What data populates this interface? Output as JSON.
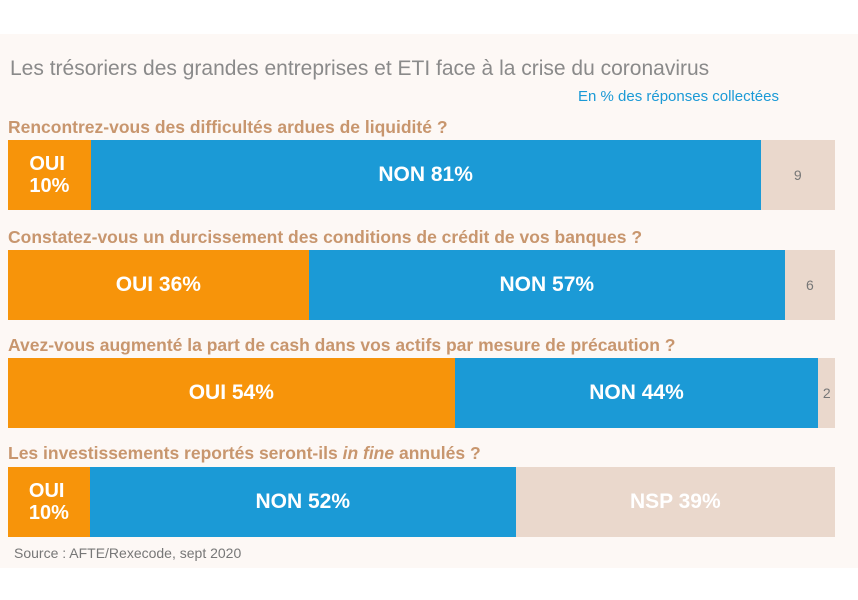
{
  "chart_data": {
    "type": "bar",
    "stacked": true,
    "orientation": "horizontal",
    "title": "Les trésoriers des grandes entreprises et ETI face à la crise du coronavirus",
    "subtitle": "En % des réponses collectées",
    "source": "Source : AFTE/Rexecode, sept 2020",
    "colors": {
      "oui": "#f7940a",
      "non": "#1b9ad6",
      "nsp": "#ead8cc"
    },
    "questions": [
      {
        "text": "Rencontrez-vous des difficultés ardues de liquidité ?",
        "segments": [
          {
            "category": "oui",
            "value": 10,
            "label": "OUI\n10%"
          },
          {
            "category": "non",
            "value": 81,
            "label": "NON 81%"
          },
          {
            "category": "nsp",
            "value": 9,
            "label": "9"
          }
        ]
      },
      {
        "text": "Constatez-vous un durcissement des conditions de crédit de vos banques ?",
        "segments": [
          {
            "category": "oui",
            "value": 36,
            "label": "OUI 36%"
          },
          {
            "category": "non",
            "value": 57,
            "label": "NON 57%"
          },
          {
            "category": "nsp",
            "value": 6,
            "label": "6"
          }
        ]
      },
      {
        "text": "Avez-vous augmenté la part de cash dans vos actifs par mesure de précaution ?",
        "segments": [
          {
            "category": "oui",
            "value": 54,
            "label": "OUI 54%"
          },
          {
            "category": "non",
            "value": 44,
            "label": "NON 44%"
          },
          {
            "category": "nsp",
            "value": 2,
            "label": "2"
          }
        ]
      },
      {
        "text_before": "Les investissements reportés seront-ils ",
        "text_italic": "in fine",
        "text_after": " annulés ?",
        "segments": [
          {
            "category": "oui",
            "value": 10,
            "label": "OUI\n10%"
          },
          {
            "category": "non",
            "value": 52,
            "label": "NON 52%"
          },
          {
            "category": "nsp",
            "value": 39,
            "label": "NSP 39%"
          }
        ]
      }
    ]
  }
}
